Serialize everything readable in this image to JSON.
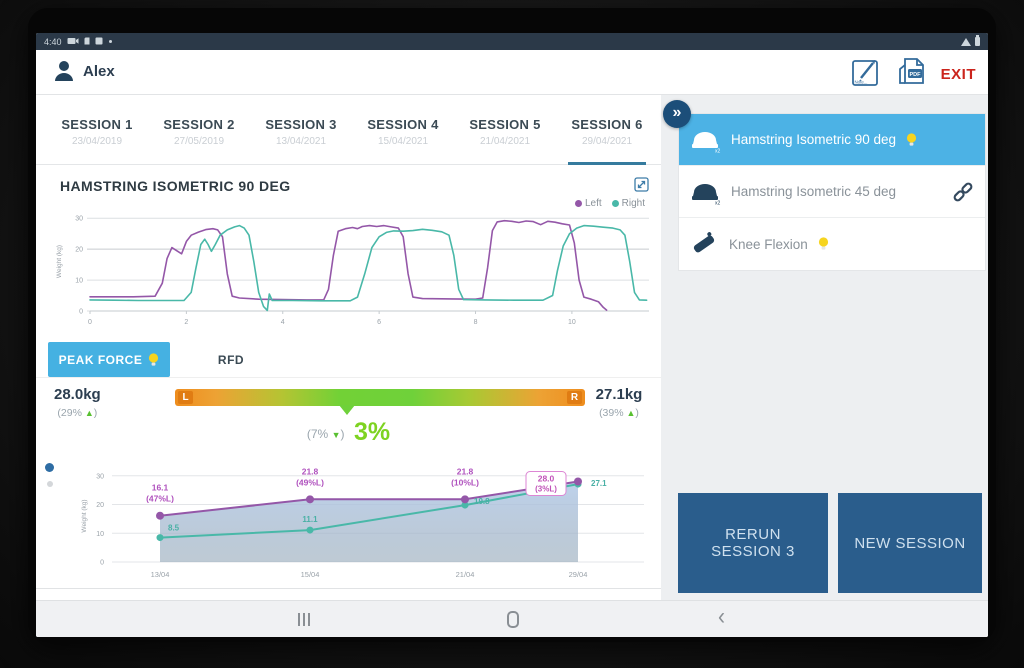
{
  "colors": {
    "accent_blue": "#357b9e",
    "light_blue": "#4cb2e5",
    "navy_button": "#2a5d8c",
    "purple_series": "#9457a8",
    "teal_series": "#49b8a8",
    "green": "#7ed321",
    "orange": "#ee8d1e",
    "exit_red": "#cb241c",
    "statusbar": "#2b3948"
  },
  "status_bar": {
    "time": "4:40"
  },
  "icons": {
    "collapse_glyph": "»",
    "back_glyph": "‹"
  },
  "header": {
    "user": "Alex",
    "note_label": "Note...",
    "pdf_label": "PDF",
    "exit_label": "EXIT"
  },
  "sessions": [
    {
      "label": "SESSION 1",
      "date": "23/04/2019"
    },
    {
      "label": "SESSION 2",
      "date": "27/05/2019"
    },
    {
      "label": "SESSION 3",
      "date": "13/04/2021"
    },
    {
      "label": "SESSION 4",
      "date": "15/04/2021"
    },
    {
      "label": "SESSION 5",
      "date": "21/04/2021"
    },
    {
      "label": "SESSION 6",
      "date": "29/04/2021"
    }
  ],
  "exercises": [
    {
      "label": "Hamstring Isometric 90 deg",
      "active": true,
      "bulb": true,
      "linked": false
    },
    {
      "label": "Hamstring Isometric 45 deg",
      "active": false,
      "bulb": false,
      "linked": true
    },
    {
      "label": "Knee Flexion",
      "active": false,
      "bulb": true,
      "linked": false
    }
  ],
  "metric_tabs": {
    "peak_force": "PEAK FORCE",
    "rfd": "RFD"
  },
  "comparison": {
    "left": {
      "value": "28.0kg",
      "open": "(29%",
      "arrow": "▲",
      "close": ")"
    },
    "right": {
      "value": "27.1kg",
      "open": "(39%",
      "arrow": "▲",
      "close": ")"
    },
    "center": {
      "open": "(7%",
      "arrow": "▼",
      "close": ")",
      "big": "3%"
    },
    "bar": {
      "left_letter": "L",
      "right_letter": "R"
    }
  },
  "actions": {
    "rerun": "RERUN SESSION 3",
    "new_session": "NEW SESSION"
  },
  "chart_data": [
    {
      "name": "session_trace",
      "type": "line",
      "title": "HAMSTRING ISOMETRIC 90 DEG",
      "ylabel": "Weight (kg)",
      "ylim": [
        0,
        32
      ],
      "yticks": [
        0,
        10,
        20,
        30
      ],
      "xlim": [
        0,
        11.6
      ],
      "xticks": [
        0,
        2,
        4,
        6,
        8,
        10
      ],
      "grid": true,
      "legend_position": "top-right",
      "series": [
        {
          "name": "Left",
          "color": "#9457a8",
          "points": [
            [
              0,
              4.6
            ],
            [
              0.9,
              4.6
            ],
            [
              1.35,
              4.8
            ],
            [
              1.5,
              9
            ],
            [
              1.6,
              17
            ],
            [
              1.7,
              20.5
            ],
            [
              1.8,
              19.5
            ],
            [
              1.9,
              18.5
            ],
            [
              2.0,
              22.5
            ],
            [
              2.1,
              24.5
            ],
            [
              2.25,
              25.5
            ],
            [
              2.4,
              26.3
            ],
            [
              2.55,
              26.6
            ],
            [
              2.65,
              26.2
            ],
            [
              2.75,
              24
            ],
            [
              2.85,
              12
            ],
            [
              2.95,
              4.8
            ],
            [
              3.1,
              4.2
            ],
            [
              3.5,
              3.8
            ],
            [
              4.0,
              3.7
            ],
            [
              4.5,
              3.6
            ],
            [
              4.85,
              3.6
            ],
            [
              4.95,
              7
            ],
            [
              5.05,
              18
            ],
            [
              5.15,
              25.8
            ],
            [
              5.3,
              26.6
            ],
            [
              5.45,
              27
            ],
            [
              5.55,
              26.6
            ],
            [
              5.65,
              27.3
            ],
            [
              5.8,
              27.6
            ],
            [
              5.95,
              27.3
            ],
            [
              6.1,
              27.6
            ],
            [
              6.25,
              27.2
            ],
            [
              6.4,
              26.8
            ],
            [
              6.5,
              24
            ],
            [
              6.6,
              12
            ],
            [
              6.7,
              4.5
            ],
            [
              6.9,
              4.0
            ],
            [
              7.5,
              3.9
            ],
            [
              8.0,
              3.8
            ],
            [
              8.15,
              4.2
            ],
            [
              8.25,
              14
            ],
            [
              8.35,
              26
            ],
            [
              8.45,
              28.8
            ],
            [
              8.6,
              29.2
            ],
            [
              8.75,
              29.0
            ],
            [
              8.9,
              28.6
            ],
            [
              9.05,
              29.1
            ],
            [
              9.2,
              28.9
            ],
            [
              9.35,
              27.9
            ],
            [
              9.5,
              29.0
            ],
            [
              9.65,
              28.7
            ],
            [
              9.8,
              28.2
            ],
            [
              9.95,
              27.8
            ],
            [
              10.05,
              22
            ],
            [
              10.15,
              10
            ],
            [
              10.25,
              4.5
            ],
            [
              10.4,
              3.8
            ],
            [
              10.55,
              3.0
            ],
            [
              10.65,
              1.2
            ],
            [
              10.72,
              0.3
            ]
          ]
        },
        {
          "name": "Right",
          "color": "#49b8a8",
          "points": [
            [
              0,
              3.6
            ],
            [
              0.5,
              3.5
            ],
            [
              1.0,
              3.4
            ],
            [
              1.5,
              3.4
            ],
            [
              1.95,
              3.4
            ],
            [
              2.1,
              6
            ],
            [
              2.2,
              14
            ],
            [
              2.3,
              21.5
            ],
            [
              2.38,
              23.2
            ],
            [
              2.45,
              21.5
            ],
            [
              2.52,
              19.3
            ],
            [
              2.6,
              21.5
            ],
            [
              2.7,
              24.5
            ],
            [
              2.85,
              26.2
            ],
            [
              3.0,
              27.2
            ],
            [
              3.1,
              27.6
            ],
            [
              3.2,
              26.8
            ],
            [
              3.3,
              24.5
            ],
            [
              3.4,
              16
            ],
            [
              3.5,
              6
            ],
            [
              3.6,
              1.5
            ],
            [
              3.68,
              0.2
            ],
            [
              3.72,
              5.5
            ],
            [
              3.78,
              3.4
            ],
            [
              4.2,
              3.4
            ],
            [
              4.8,
              3.3
            ],
            [
              5.4,
              3.3
            ],
            [
              5.55,
              4.5
            ],
            [
              5.7,
              12
            ],
            [
              5.85,
              20.5
            ],
            [
              6.0,
              24
            ],
            [
              6.15,
              25.4
            ],
            [
              6.3,
              25.9
            ],
            [
              6.5,
              25.8
            ],
            [
              6.7,
              26.0
            ],
            [
              6.9,
              26.4
            ],
            [
              7.1,
              26.1
            ],
            [
              7.3,
              25.6
            ],
            [
              7.45,
              24.5
            ],
            [
              7.55,
              18
            ],
            [
              7.65,
              7
            ],
            [
              7.75,
              3.7
            ],
            [
              8.2,
              3.6
            ],
            [
              8.8,
              3.5
            ],
            [
              9.4,
              3.5
            ],
            [
              9.6,
              5
            ],
            [
              9.7,
              13
            ],
            [
              9.82,
              21
            ],
            [
              9.95,
              25
            ],
            [
              10.1,
              26.8
            ],
            [
              10.25,
              27.6
            ],
            [
              10.45,
              27.4
            ],
            [
              10.65,
              27.1
            ],
            [
              10.85,
              26.8
            ],
            [
              11.0,
              26.2
            ],
            [
              11.1,
              24.5
            ],
            [
              11.2,
              16
            ],
            [
              11.3,
              6
            ],
            [
              11.4,
              3.6
            ],
            [
              11.55,
              3.5
            ]
          ]
        }
      ]
    },
    {
      "name": "session_progress",
      "type": "line",
      "ylabel": "Weight (kg)",
      "ylim": [
        0,
        32
      ],
      "yticks": [
        0,
        10,
        20,
        30
      ],
      "categories": [
        "13/04",
        "15/04",
        "21/04",
        "29/04"
      ],
      "grid": true,
      "area_fill": true,
      "series": [
        {
          "name": "Left",
          "color": "#9457a8",
          "values": [
            16.1,
            21.8,
            21.8,
            28.0
          ],
          "labels": [
            "16.1",
            "21.8",
            "21.8",
            "28.0"
          ],
          "sublabels": [
            "(47%L)",
            "(49%L)",
            "(10%L)",
            "(3%L)"
          ]
        },
        {
          "name": "Right",
          "color": "#49b8a8",
          "values": [
            8.5,
            11.1,
            19.8,
            27.1
          ],
          "labels": [
            "8.5",
            "11.1",
            "19.8",
            "27.1"
          ]
        }
      ]
    }
  ]
}
